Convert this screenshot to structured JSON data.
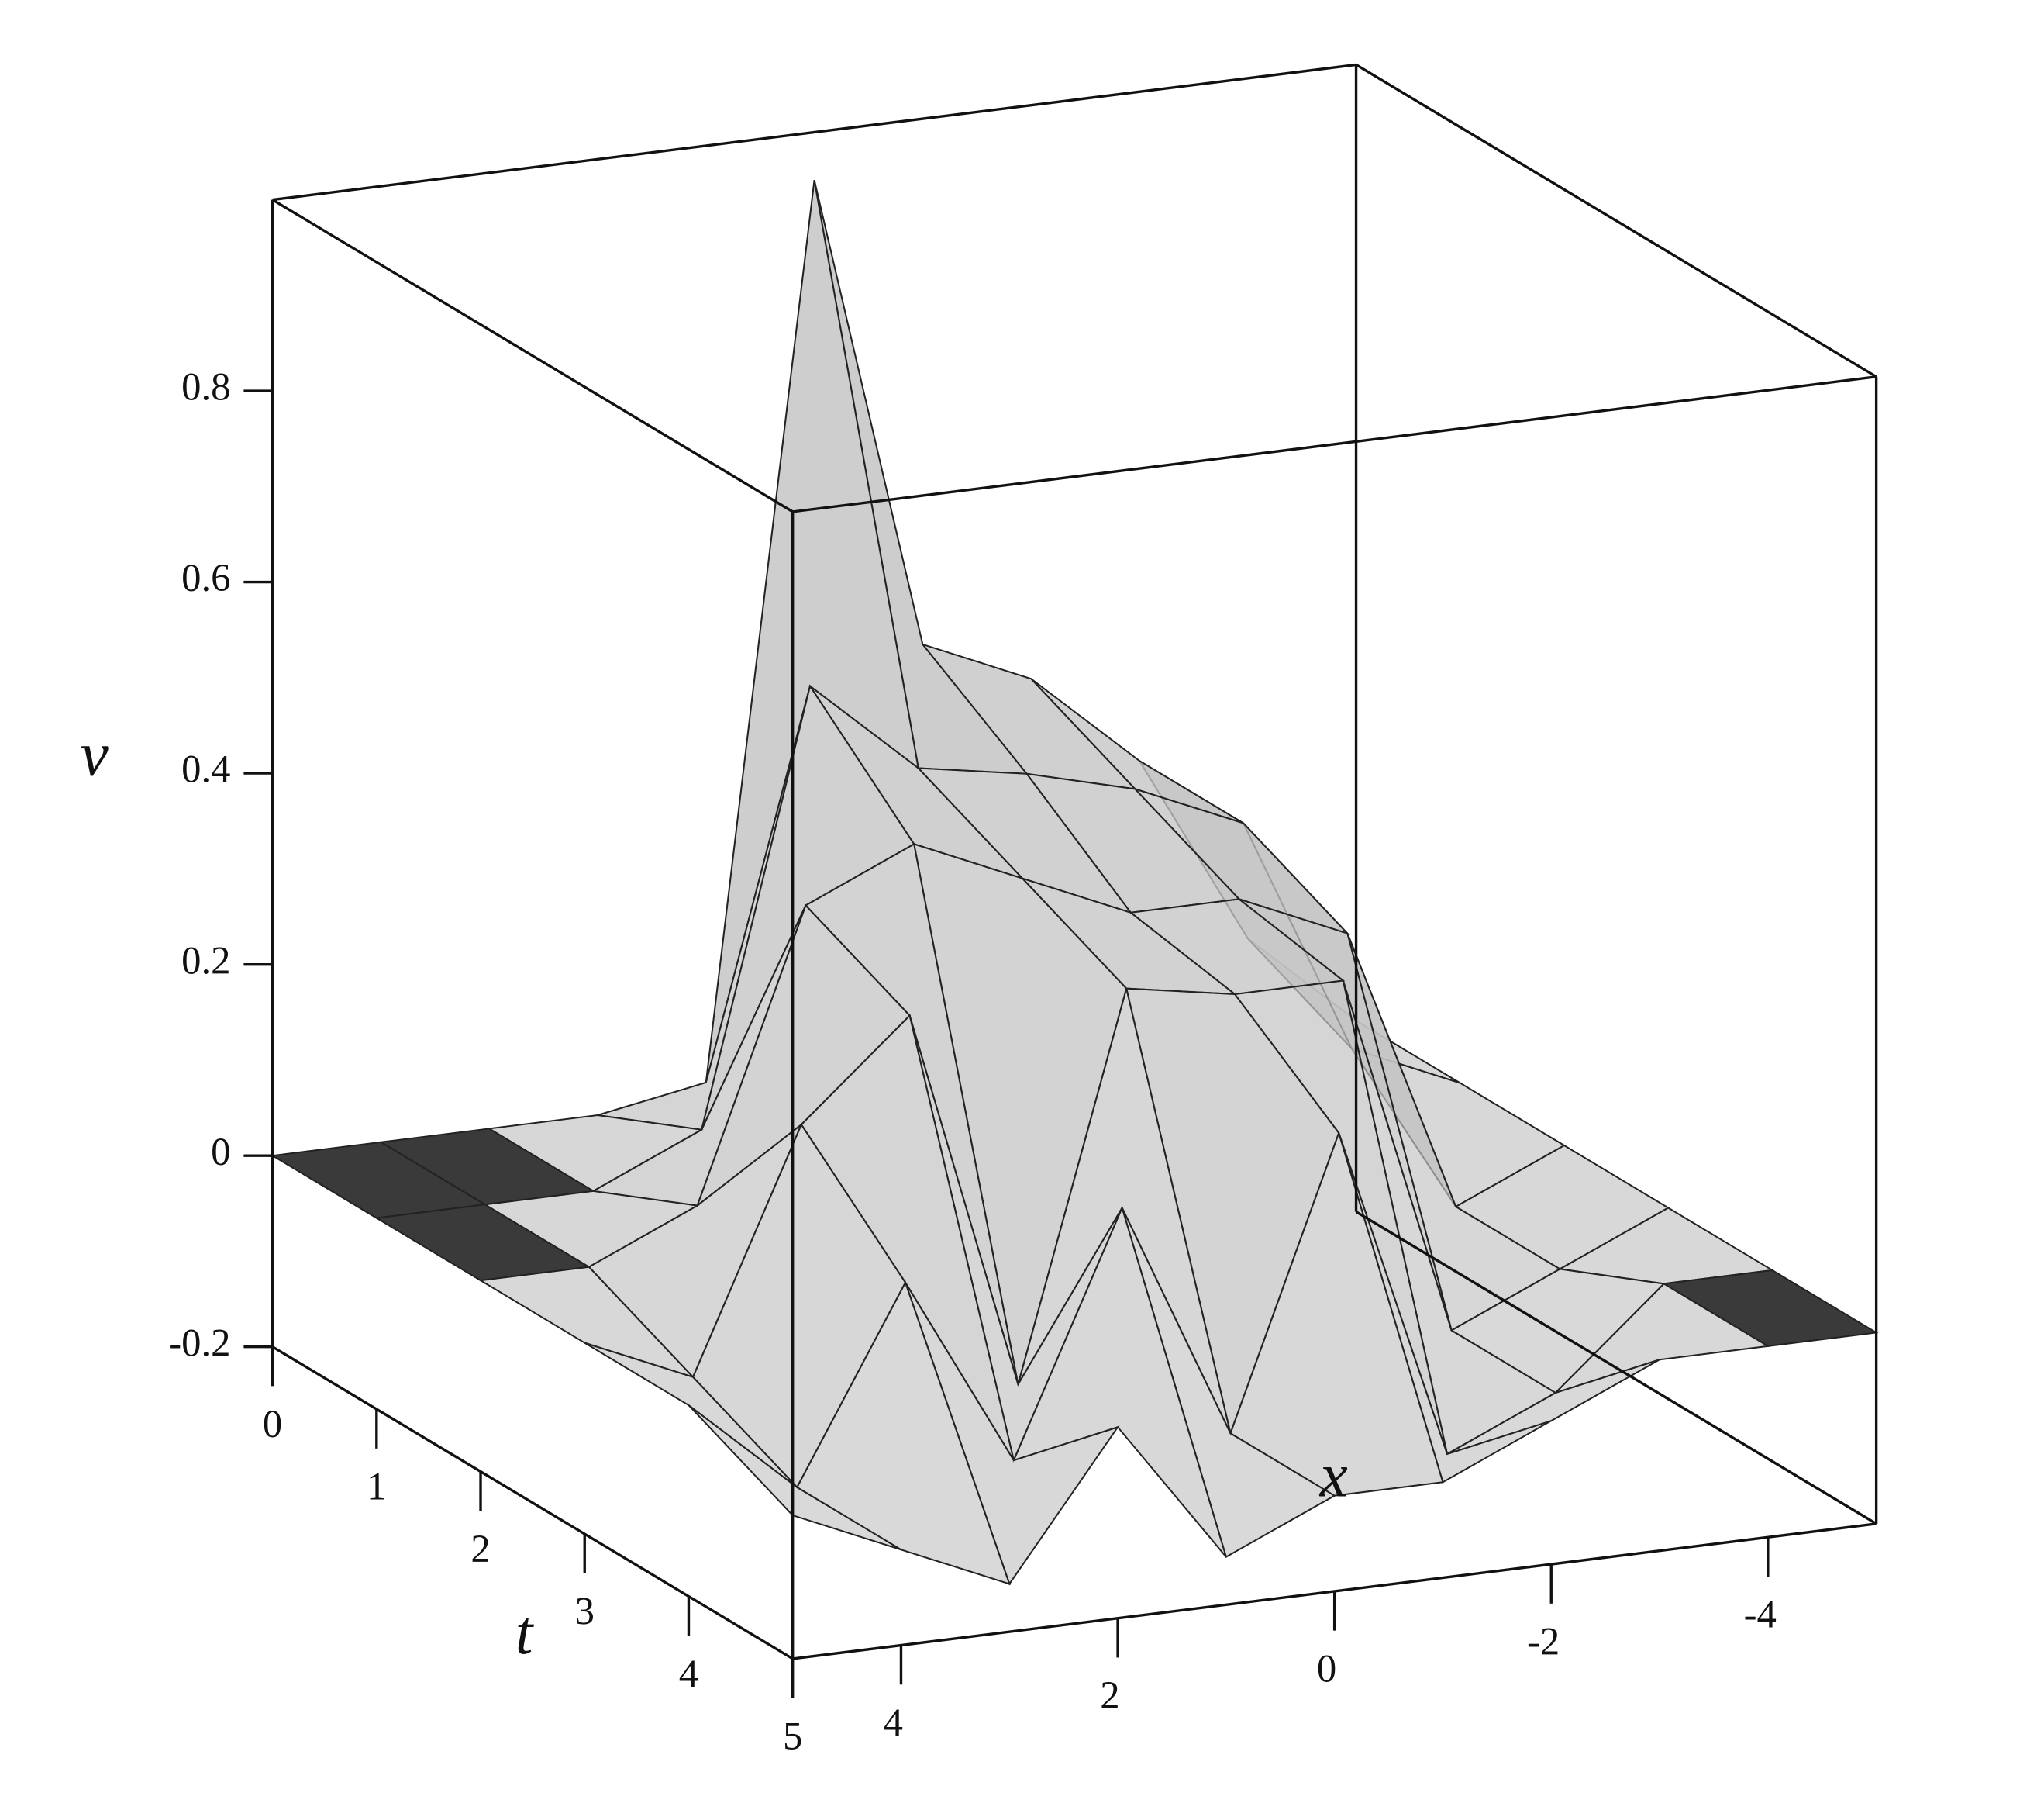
{
  "chart_data": {
    "type": "surface",
    "xlabel": "x",
    "ylabel": "t",
    "zlabel": "v",
    "x": [
      5,
      4,
      3,
      2,
      1,
      0,
      -1,
      -2,
      -3,
      -4,
      -5
    ],
    "y": [
      0,
      1,
      2,
      3,
      4,
      5
    ],
    "values": [
      [
        0,
        0,
        0,
        0,
        0.02,
        0.95,
        0.45,
        0.4,
        0.3,
        0.1,
        0
      ],
      [
        0,
        0,
        0,
        0.05,
        0.5,
        0.4,
        0.38,
        0.35,
        0.3,
        0.05,
        0
      ],
      [
        0,
        0,
        0.05,
        0.35,
        0.4,
        0.35,
        0.3,
        0.3,
        0.25,
        -0.05,
        0
      ],
      [
        0,
        -0.05,
        0.2,
        0.3,
        -0.1,
        0.3,
        0.28,
        0.28,
        -0.1,
        -0.05,
        0
      ],
      [
        0,
        -0.1,
        0.1,
        -0.1,
        0.15,
        -0.1,
        0.2,
        -0.15,
        -0.1,
        0,
        0
      ],
      [
        -0.05,
        -0.1,
        -0.15,
        0,
        -0.15,
        -0.1,
        -0.1,
        -0.05,
        0,
        0,
        0
      ]
    ],
    "xlim": [
      -5,
      5
    ],
    "xticks": [
      4,
      2,
      0,
      -2,
      -4
    ],
    "ylim": [
      0,
      5
    ],
    "yticks": [
      0,
      1,
      2,
      3,
      4,
      5
    ],
    "zlim": [
      -0.2,
      1.0
    ],
    "zticks": [
      -0.2,
      0,
      0.2,
      0.4,
      0.6,
      0.8
    ],
    "color": "#c4c4c4",
    "line_color": "#222222"
  }
}
